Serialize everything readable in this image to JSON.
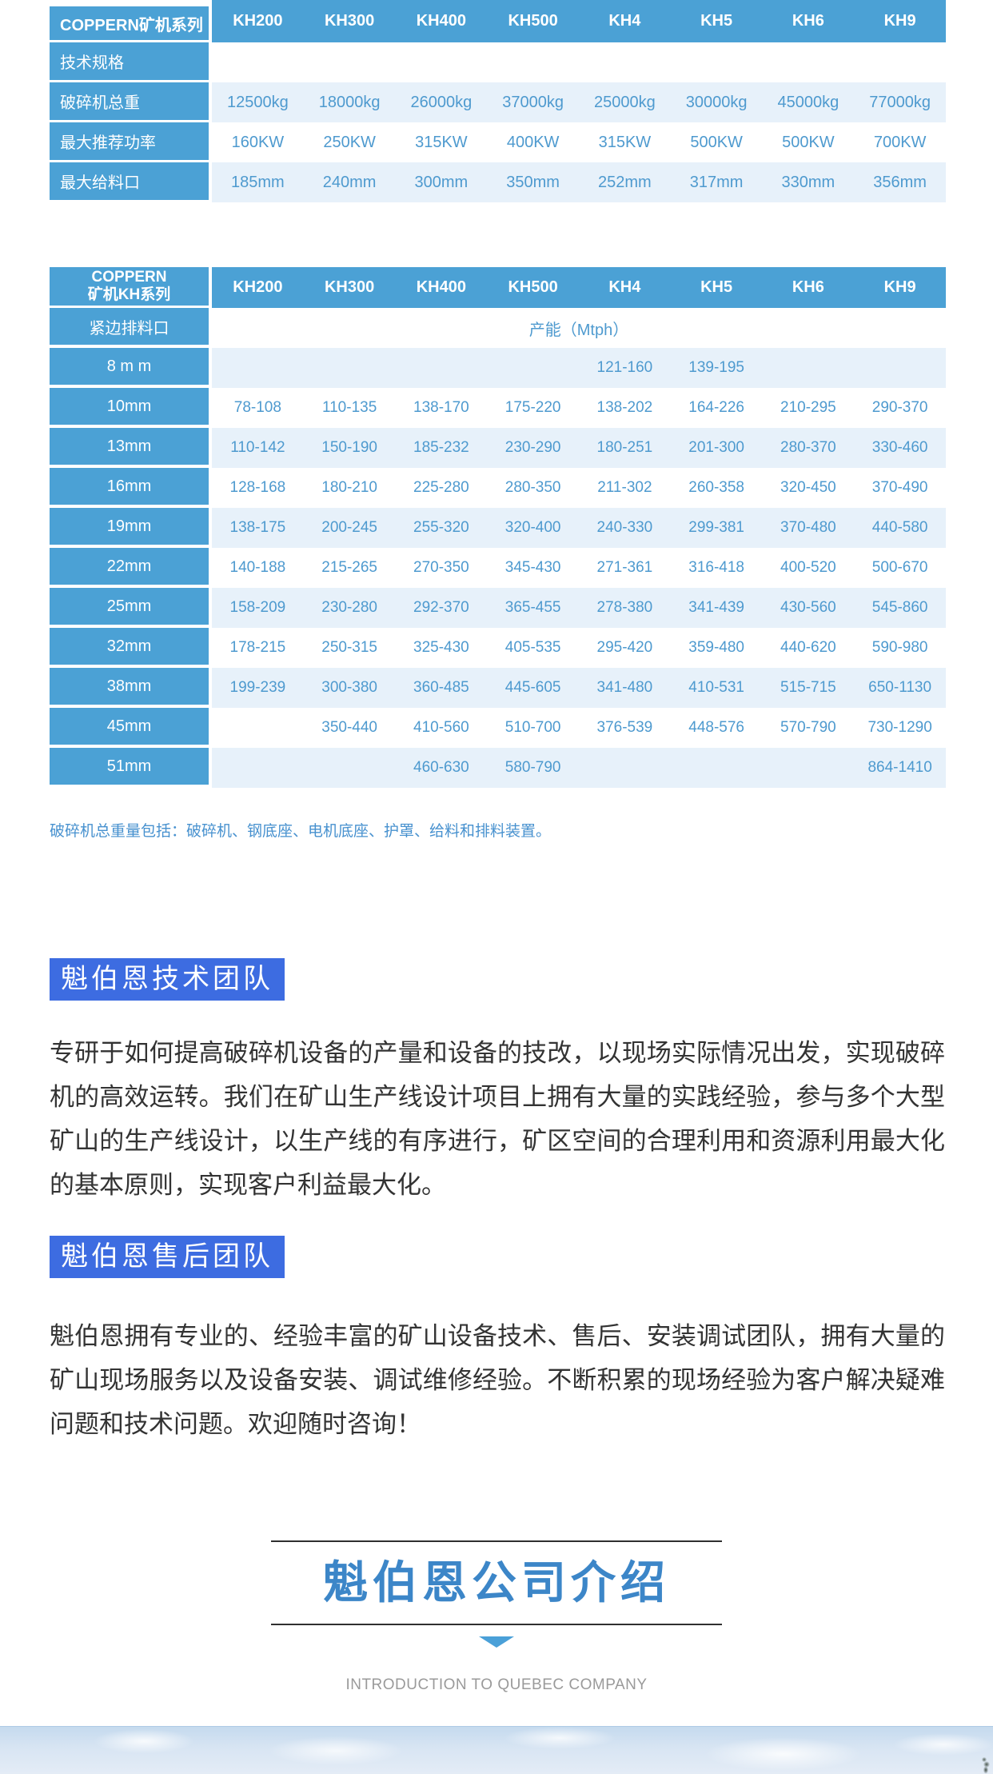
{
  "colors": {
    "table_header_bg": "#4ba1d5",
    "table_row_alt_bg": "#e7f1fa",
    "table_value_text": "#4e9acf",
    "note_text": "#4791cf",
    "badge_bg": "#3d6ce1",
    "badge_text": "#ffffff",
    "body_text": "#333333",
    "intro_title_color": "#3c86c8",
    "intro_subtitle_color": "#9a9a9a",
    "intro_arrow_color": "#4aa0d8"
  },
  "icons": {
    "down_arrow": "triangle-down"
  },
  "spec_table": {
    "corner_label": "COPPERN矿机系列",
    "columns": [
      "KH200",
      "KH300",
      "KH400",
      "KH500",
      "KH4",
      "KH5",
      "KH6",
      "KH9"
    ],
    "section_row_label": "技术规格",
    "rows": [
      {
        "label": "破碎机总重",
        "values": [
          "12500kg",
          "18000kg",
          "26000kg",
          "37000kg",
          "25000kg",
          "30000kg",
          "45000kg",
          "77000kg"
        ]
      },
      {
        "label": "最大推荐功率",
        "values": [
          "160KW",
          "250KW",
          "315KW",
          "400KW",
          "315KW",
          "500KW",
          "500KW",
          "700KW"
        ]
      },
      {
        "label": "最大给料口",
        "values": [
          "185mm",
          "240mm",
          "300mm",
          "350mm",
          "252mm",
          "317mm",
          "330mm",
          "356mm"
        ]
      }
    ]
  },
  "capacity_table": {
    "corner_label_line1": "COPPERN",
    "corner_label_line2": "矿机KH系列",
    "columns": [
      "KH200",
      "KH300",
      "KH400",
      "KH500",
      "KH4",
      "KH5",
      "KH6",
      "KH9"
    ],
    "span_row_label": "紧边排料口",
    "span_row_value": "产能（Mtph）",
    "rows": [
      {
        "label": "8 m m",
        "values": [
          "",
          "",
          "",
          "",
          "121-160",
          "139-195",
          "",
          ""
        ]
      },
      {
        "label": "10mm",
        "values": [
          "78-108",
          "110-135",
          "138-170",
          "175-220",
          "138-202",
          "164-226",
          "210-295",
          "290-370"
        ]
      },
      {
        "label": "13mm",
        "values": [
          "110-142",
          "150-190",
          "185-232",
          "230-290",
          "180-251",
          "201-300",
          "280-370",
          "330-460"
        ]
      },
      {
        "label": "16mm",
        "values": [
          "128-168",
          "180-210",
          "225-280",
          "280-350",
          "211-302",
          "260-358",
          "320-450",
          "370-490"
        ]
      },
      {
        "label": "19mm",
        "values": [
          "138-175",
          "200-245",
          "255-320",
          "320-400",
          "240-330",
          "299-381",
          "370-480",
          "440-580"
        ]
      },
      {
        "label": "22mm",
        "values": [
          "140-188",
          "215-265",
          "270-350",
          "345-430",
          "271-361",
          "316-418",
          "400-520",
          "500-670"
        ]
      },
      {
        "label": "25mm",
        "values": [
          "158-209",
          "230-280",
          "292-370",
          "365-455",
          "278-380",
          "341-439",
          "430-560",
          "545-860"
        ]
      },
      {
        "label": "32mm",
        "values": [
          "178-215",
          "250-315",
          "325-430",
          "405-535",
          "295-420",
          "359-480",
          "440-620",
          "590-980"
        ]
      },
      {
        "label": "38mm",
        "values": [
          "199-239",
          "300-380",
          "360-485",
          "445-605",
          "341-480",
          "410-531",
          "515-715",
          "650-1130"
        ]
      },
      {
        "label": "45mm",
        "values": [
          "",
          "350-440",
          "410-560",
          "510-700",
          "376-539",
          "448-576",
          "570-790",
          "730-1290"
        ]
      },
      {
        "label": "51mm",
        "values": [
          "",
          "",
          "460-630",
          "580-790",
          "",
          "",
          "",
          "864-1410"
        ]
      }
    ]
  },
  "note": "破碎机总重量包括：破碎机、钢底座、电机底座、护罩、给料和排料装置。",
  "sections": [
    {
      "badge": "魁伯恩技术团队",
      "paragraph": "专研于如何提高破碎机设备的产量和设备的技改，以现场实际情况出发，实现破碎机的高效运转。我们在矿山生产线设计项目上拥有大量的实践经验，参与多个大型矿山的生产线设计，以生产线的有序进行，矿区空间的合理利用和资源利用最大化的基本原则，实现客户利益最大化。"
    },
    {
      "badge": "魁伯恩售后团队",
      "paragraph": "魁伯恩拥有专业的、经验丰富的矿山设备技术、售后、安装调试团队，拥有大量的矿山现场服务以及设备安装、调试维修经验。不断积累的现场经验为客户解决疑难问题和技术问题。欢迎随时咨询！"
    }
  ],
  "company_intro": {
    "title": "魁伯恩公司介绍",
    "subtitle": "INTRODUCTION TO QUEBEC COMPANY"
  }
}
